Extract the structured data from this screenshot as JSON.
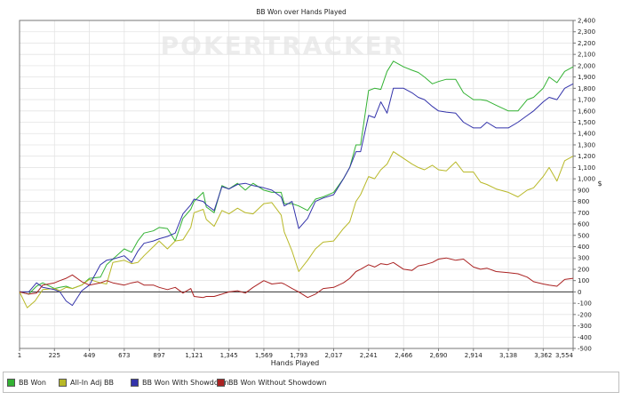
{
  "chart_data": {
    "type": "line",
    "title": "BB Won over Hands Played",
    "watermark": "POKERTRACKER",
    "xlabel": "Hands Played",
    "ylabel": "$",
    "xlim": [
      1,
      3554
    ],
    "ylim": [
      -500,
      2400
    ],
    "x_ticks": [
      "1",
      "225",
      "449",
      "673",
      "897",
      "1,121",
      "1,345",
      "1,569",
      "1,793",
      "2,017",
      "2,241",
      "2,466",
      "2,690",
      "2,914",
      "3,138",
      "3,362",
      "3,554"
    ],
    "y_ticks": [
      "-500",
      "-400",
      "-300",
      "-200",
      "-100",
      "0",
      "100",
      "200",
      "300",
      "400",
      "500",
      "600",
      "700",
      "800",
      "900",
      "1,000",
      "1,100",
      "1,200",
      "1,300",
      "1,400",
      "1,500",
      "1,600",
      "1,700",
      "1,800",
      "1,900",
      "2,000",
      "2,100",
      "2,200",
      "2,300",
      "2,400"
    ],
    "grid": true,
    "legend_position": "bottom",
    "series": [
      {
        "name": "BB Won",
        "color": "#33b233",
        "points": [
          [
            1,
            0
          ],
          [
            60,
            -20
          ],
          [
            110,
            50
          ],
          [
            150,
            80
          ],
          [
            225,
            30
          ],
          [
            260,
            40
          ],
          [
            300,
            50
          ],
          [
            340,
            30
          ],
          [
            400,
            60
          ],
          [
            449,
            120
          ],
          [
            520,
            130
          ],
          [
            560,
            240
          ],
          [
            600,
            290
          ],
          [
            673,
            380
          ],
          [
            720,
            350
          ],
          [
            760,
            450
          ],
          [
            800,
            520
          ],
          [
            860,
            540
          ],
          [
            897,
            570
          ],
          [
            950,
            560
          ],
          [
            1000,
            450
          ],
          [
            1050,
            650
          ],
          [
            1100,
            730
          ],
          [
            1121,
            800
          ],
          [
            1180,
            880
          ],
          [
            1200,
            750
          ],
          [
            1250,
            700
          ],
          [
            1300,
            940
          ],
          [
            1345,
            910
          ],
          [
            1400,
            960
          ],
          [
            1450,
            900
          ],
          [
            1500,
            960
          ],
          [
            1569,
            900
          ],
          [
            1620,
            880
          ],
          [
            1680,
            880
          ],
          [
            1700,
            780
          ],
          [
            1750,
            780
          ],
          [
            1793,
            760
          ],
          [
            1850,
            720
          ],
          [
            1900,
            820
          ],
          [
            1950,
            840
          ],
          [
            2017,
            880
          ],
          [
            2080,
            1000
          ],
          [
            2120,
            1100
          ],
          [
            2160,
            1300
          ],
          [
            2190,
            1300
          ],
          [
            2241,
            1780
          ],
          [
            2280,
            1800
          ],
          [
            2320,
            1790
          ],
          [
            2360,
            1950
          ],
          [
            2400,
            2040
          ],
          [
            2466,
            1990
          ],
          [
            2520,
            1960
          ],
          [
            2560,
            1940
          ],
          [
            2600,
            1900
          ],
          [
            2650,
            1840
          ],
          [
            2690,
            1860
          ],
          [
            2740,
            1880
          ],
          [
            2800,
            1880
          ],
          [
            2850,
            1760
          ],
          [
            2914,
            1700
          ],
          [
            2960,
            1700
          ],
          [
            3000,
            1690
          ],
          [
            3060,
            1650
          ],
          [
            3138,
            1600
          ],
          [
            3200,
            1600
          ],
          [
            3260,
            1700
          ],
          [
            3300,
            1720
          ],
          [
            3362,
            1800
          ],
          [
            3400,
            1900
          ],
          [
            3450,
            1850
          ],
          [
            3500,
            1950
          ],
          [
            3554,
            1990
          ]
        ]
      },
      {
        "name": "All-In Adj BB",
        "color": "#b8b827",
        "points": [
          [
            1,
            0
          ],
          [
            50,
            -140
          ],
          [
            100,
            -80
          ],
          [
            150,
            20
          ],
          [
            225,
            30
          ],
          [
            260,
            10
          ],
          [
            300,
            40
          ],
          [
            340,
            30
          ],
          [
            400,
            60
          ],
          [
            449,
            110
          ],
          [
            520,
            80
          ],
          [
            560,
            70
          ],
          [
            600,
            260
          ],
          [
            673,
            280
          ],
          [
            720,
            250
          ],
          [
            760,
            260
          ],
          [
            800,
            320
          ],
          [
            860,
            400
          ],
          [
            897,
            450
          ],
          [
            950,
            380
          ],
          [
            1000,
            450
          ],
          [
            1050,
            460
          ],
          [
            1100,
            570
          ],
          [
            1121,
            700
          ],
          [
            1180,
            730
          ],
          [
            1200,
            640
          ],
          [
            1250,
            580
          ],
          [
            1300,
            720
          ],
          [
            1345,
            690
          ],
          [
            1400,
            740
          ],
          [
            1450,
            700
          ],
          [
            1500,
            690
          ],
          [
            1569,
            780
          ],
          [
            1620,
            790
          ],
          [
            1680,
            680
          ],
          [
            1700,
            530
          ],
          [
            1750,
            360
          ],
          [
            1793,
            180
          ],
          [
            1850,
            280
          ],
          [
            1900,
            380
          ],
          [
            1950,
            440
          ],
          [
            2017,
            450
          ],
          [
            2080,
            560
          ],
          [
            2120,
            620
          ],
          [
            2160,
            800
          ],
          [
            2190,
            860
          ],
          [
            2241,
            1020
          ],
          [
            2280,
            1000
          ],
          [
            2320,
            1080
          ],
          [
            2360,
            1130
          ],
          [
            2400,
            1240
          ],
          [
            2466,
            1180
          ],
          [
            2520,
            1130
          ],
          [
            2560,
            1100
          ],
          [
            2600,
            1080
          ],
          [
            2650,
            1120
          ],
          [
            2690,
            1080
          ],
          [
            2740,
            1070
          ],
          [
            2800,
            1150
          ],
          [
            2850,
            1060
          ],
          [
            2914,
            1060
          ],
          [
            2960,
            970
          ],
          [
            3000,
            950
          ],
          [
            3060,
            910
          ],
          [
            3138,
            880
          ],
          [
            3200,
            840
          ],
          [
            3260,
            900
          ],
          [
            3300,
            920
          ],
          [
            3362,
            1020
          ],
          [
            3400,
            1100
          ],
          [
            3450,
            980
          ],
          [
            3500,
            1160
          ],
          [
            3554,
            1200
          ]
        ]
      },
      {
        "name": "BB Won With Showdown",
        "color": "#3333aa",
        "points": [
          [
            1,
            0
          ],
          [
            60,
            0
          ],
          [
            110,
            80
          ],
          [
            150,
            40
          ],
          [
            225,
            20
          ],
          [
            260,
            0
          ],
          [
            300,
            -80
          ],
          [
            340,
            -120
          ],
          [
            400,
            10
          ],
          [
            449,
            60
          ],
          [
            520,
            240
          ],
          [
            560,
            280
          ],
          [
            600,
            290
          ],
          [
            673,
            320
          ],
          [
            720,
            260
          ],
          [
            760,
            360
          ],
          [
            800,
            430
          ],
          [
            860,
            450
          ],
          [
            897,
            470
          ],
          [
            950,
            490
          ],
          [
            1000,
            520
          ],
          [
            1050,
            690
          ],
          [
            1100,
            770
          ],
          [
            1121,
            820
          ],
          [
            1180,
            800
          ],
          [
            1200,
            770
          ],
          [
            1250,
            720
          ],
          [
            1300,
            930
          ],
          [
            1345,
            910
          ],
          [
            1400,
            950
          ],
          [
            1450,
            960
          ],
          [
            1500,
            940
          ],
          [
            1569,
            920
          ],
          [
            1620,
            900
          ],
          [
            1680,
            840
          ],
          [
            1700,
            760
          ],
          [
            1750,
            800
          ],
          [
            1793,
            560
          ],
          [
            1850,
            650
          ],
          [
            1900,
            800
          ],
          [
            1950,
            830
          ],
          [
            2017,
            860
          ],
          [
            2080,
            1000
          ],
          [
            2120,
            1100
          ],
          [
            2160,
            1240
          ],
          [
            2190,
            1240
          ],
          [
            2241,
            1560
          ],
          [
            2280,
            1540
          ],
          [
            2320,
            1680
          ],
          [
            2360,
            1580
          ],
          [
            2400,
            1800
          ],
          [
            2466,
            1800
          ],
          [
            2520,
            1760
          ],
          [
            2560,
            1720
          ],
          [
            2600,
            1700
          ],
          [
            2650,
            1640
          ],
          [
            2690,
            1600
          ],
          [
            2740,
            1590
          ],
          [
            2800,
            1580
          ],
          [
            2850,
            1500
          ],
          [
            2914,
            1450
          ],
          [
            2960,
            1450
          ],
          [
            3000,
            1500
          ],
          [
            3060,
            1450
          ],
          [
            3138,
            1450
          ],
          [
            3200,
            1500
          ],
          [
            3260,
            1560
          ],
          [
            3300,
            1600
          ],
          [
            3362,
            1680
          ],
          [
            3400,
            1720
          ],
          [
            3450,
            1700
          ],
          [
            3500,
            1800
          ],
          [
            3554,
            1840
          ]
        ]
      },
      {
        "name": "BB Won Without Showdown",
        "color": "#aa2222",
        "points": [
          [
            1,
            0
          ],
          [
            60,
            -20
          ],
          [
            110,
            -10
          ],
          [
            150,
            60
          ],
          [
            225,
            80
          ],
          [
            260,
            100
          ],
          [
            300,
            120
          ],
          [
            340,
            150
          ],
          [
            400,
            90
          ],
          [
            449,
            60
          ],
          [
            520,
            80
          ],
          [
            560,
            100
          ],
          [
            600,
            80
          ],
          [
            673,
            60
          ],
          [
            720,
            80
          ],
          [
            760,
            90
          ],
          [
            800,
            60
          ],
          [
            860,
            60
          ],
          [
            897,
            40
          ],
          [
            950,
            20
          ],
          [
            1000,
            40
          ],
          [
            1050,
            -10
          ],
          [
            1100,
            30
          ],
          [
            1121,
            -40
          ],
          [
            1180,
            -50
          ],
          [
            1200,
            -40
          ],
          [
            1250,
            -40
          ],
          [
            1300,
            -20
          ],
          [
            1345,
            0
          ],
          [
            1400,
            10
          ],
          [
            1450,
            -10
          ],
          [
            1500,
            40
          ],
          [
            1569,
            100
          ],
          [
            1620,
            70
          ],
          [
            1680,
            80
          ],
          [
            1700,
            70
          ],
          [
            1750,
            30
          ],
          [
            1793,
            0
          ],
          [
            1850,
            -50
          ],
          [
            1900,
            -20
          ],
          [
            1950,
            30
          ],
          [
            2017,
            40
          ],
          [
            2080,
            80
          ],
          [
            2120,
            120
          ],
          [
            2160,
            180
          ],
          [
            2190,
            200
          ],
          [
            2241,
            240
          ],
          [
            2280,
            220
          ],
          [
            2320,
            250
          ],
          [
            2360,
            240
          ],
          [
            2400,
            260
          ],
          [
            2466,
            200
          ],
          [
            2520,
            190
          ],
          [
            2560,
            230
          ],
          [
            2600,
            240
          ],
          [
            2650,
            260
          ],
          [
            2690,
            290
          ],
          [
            2740,
            300
          ],
          [
            2800,
            280
          ],
          [
            2850,
            290
          ],
          [
            2914,
            220
          ],
          [
            2960,
            200
          ],
          [
            3000,
            210
          ],
          [
            3060,
            180
          ],
          [
            3138,
            170
          ],
          [
            3200,
            160
          ],
          [
            3260,
            130
          ],
          [
            3300,
            90
          ],
          [
            3362,
            70
          ],
          [
            3400,
            60
          ],
          [
            3450,
            50
          ],
          [
            3500,
            110
          ],
          [
            3554,
            120
          ]
        ]
      }
    ]
  }
}
